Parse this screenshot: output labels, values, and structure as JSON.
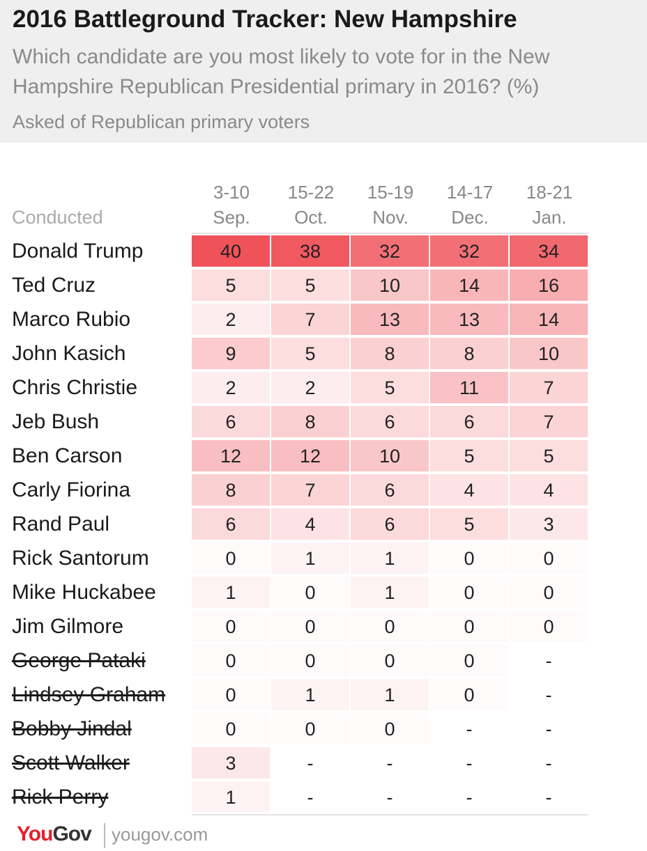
{
  "header": {
    "title": "2016 Battleground Tracker: New Hampshire",
    "subtitle": "Which candidate are you most likely to vote for in the New Hampshire Republican Presidential primary in 2016? (%)",
    "note": "Asked of Republican primary voters"
  },
  "chart_data": {
    "type": "table",
    "row_header": "Conducted",
    "columns": [
      {
        "dates": "3-10",
        "month": "Sep."
      },
      {
        "dates": "15-22",
        "month": "Oct."
      },
      {
        "dates": "15-19",
        "month": "Nov."
      },
      {
        "dates": "14-17",
        "month": "Dec."
      },
      {
        "dates": "18-21",
        "month": "Jan."
      }
    ],
    "rows": [
      {
        "name": "Donald Trump",
        "dropped": false,
        "values": [
          "40",
          "38",
          "32",
          "32",
          "34"
        ]
      },
      {
        "name": "Ted Cruz",
        "dropped": false,
        "values": [
          "5",
          "5",
          "10",
          "14",
          "16"
        ]
      },
      {
        "name": "Marco Rubio",
        "dropped": false,
        "values": [
          "2",
          "7",
          "13",
          "13",
          "14"
        ]
      },
      {
        "name": "John Kasich",
        "dropped": false,
        "values": [
          "9",
          "5",
          "8",
          "8",
          "10"
        ]
      },
      {
        "name": "Chris Christie",
        "dropped": false,
        "values": [
          "2",
          "2",
          "5",
          "11",
          "7"
        ]
      },
      {
        "name": "Jeb Bush",
        "dropped": false,
        "values": [
          "6",
          "8",
          "6",
          "6",
          "7"
        ]
      },
      {
        "name": "Ben Carson",
        "dropped": false,
        "values": [
          "12",
          "12",
          "10",
          "5",
          "5"
        ]
      },
      {
        "name": "Carly Fiorina",
        "dropped": false,
        "values": [
          "8",
          "7",
          "6",
          "4",
          "4"
        ]
      },
      {
        "name": "Rand Paul",
        "dropped": false,
        "values": [
          "6",
          "4",
          "6",
          "5",
          "3"
        ]
      },
      {
        "name": "Rick Santorum",
        "dropped": false,
        "values": [
          "0",
          "1",
          "1",
          "0",
          "0"
        ]
      },
      {
        "name": "Mike Huckabee",
        "dropped": false,
        "values": [
          "1",
          "0",
          "1",
          "0",
          "0"
        ]
      },
      {
        "name": "Jim Gilmore",
        "dropped": false,
        "values": [
          "0",
          "0",
          "0",
          "0",
          "0"
        ]
      },
      {
        "name": "George Pataki",
        "dropped": true,
        "values": [
          "0",
          "0",
          "0",
          "0",
          "-"
        ]
      },
      {
        "name": "Lindsey Graham",
        "dropped": true,
        "values": [
          "0",
          "1",
          "1",
          "0",
          "-"
        ]
      },
      {
        "name": "Bobby Jindal",
        "dropped": true,
        "values": [
          "0",
          "0",
          "0",
          "-",
          "-"
        ]
      },
      {
        "name": "Scott Walker",
        "dropped": true,
        "values": [
          "3",
          "-",
          "-",
          "-",
          "-"
        ]
      },
      {
        "name": "Rick Perry",
        "dropped": true,
        "values": [
          "1",
          "-",
          "-",
          "-",
          "-"
        ]
      }
    ],
    "color_scale": {
      "low": "#ffffff",
      "high": "#f0525a",
      "max_value": 40
    }
  },
  "footer": {
    "logo_you": "You",
    "logo_gov": "Gov",
    "site": "yougov.com"
  }
}
